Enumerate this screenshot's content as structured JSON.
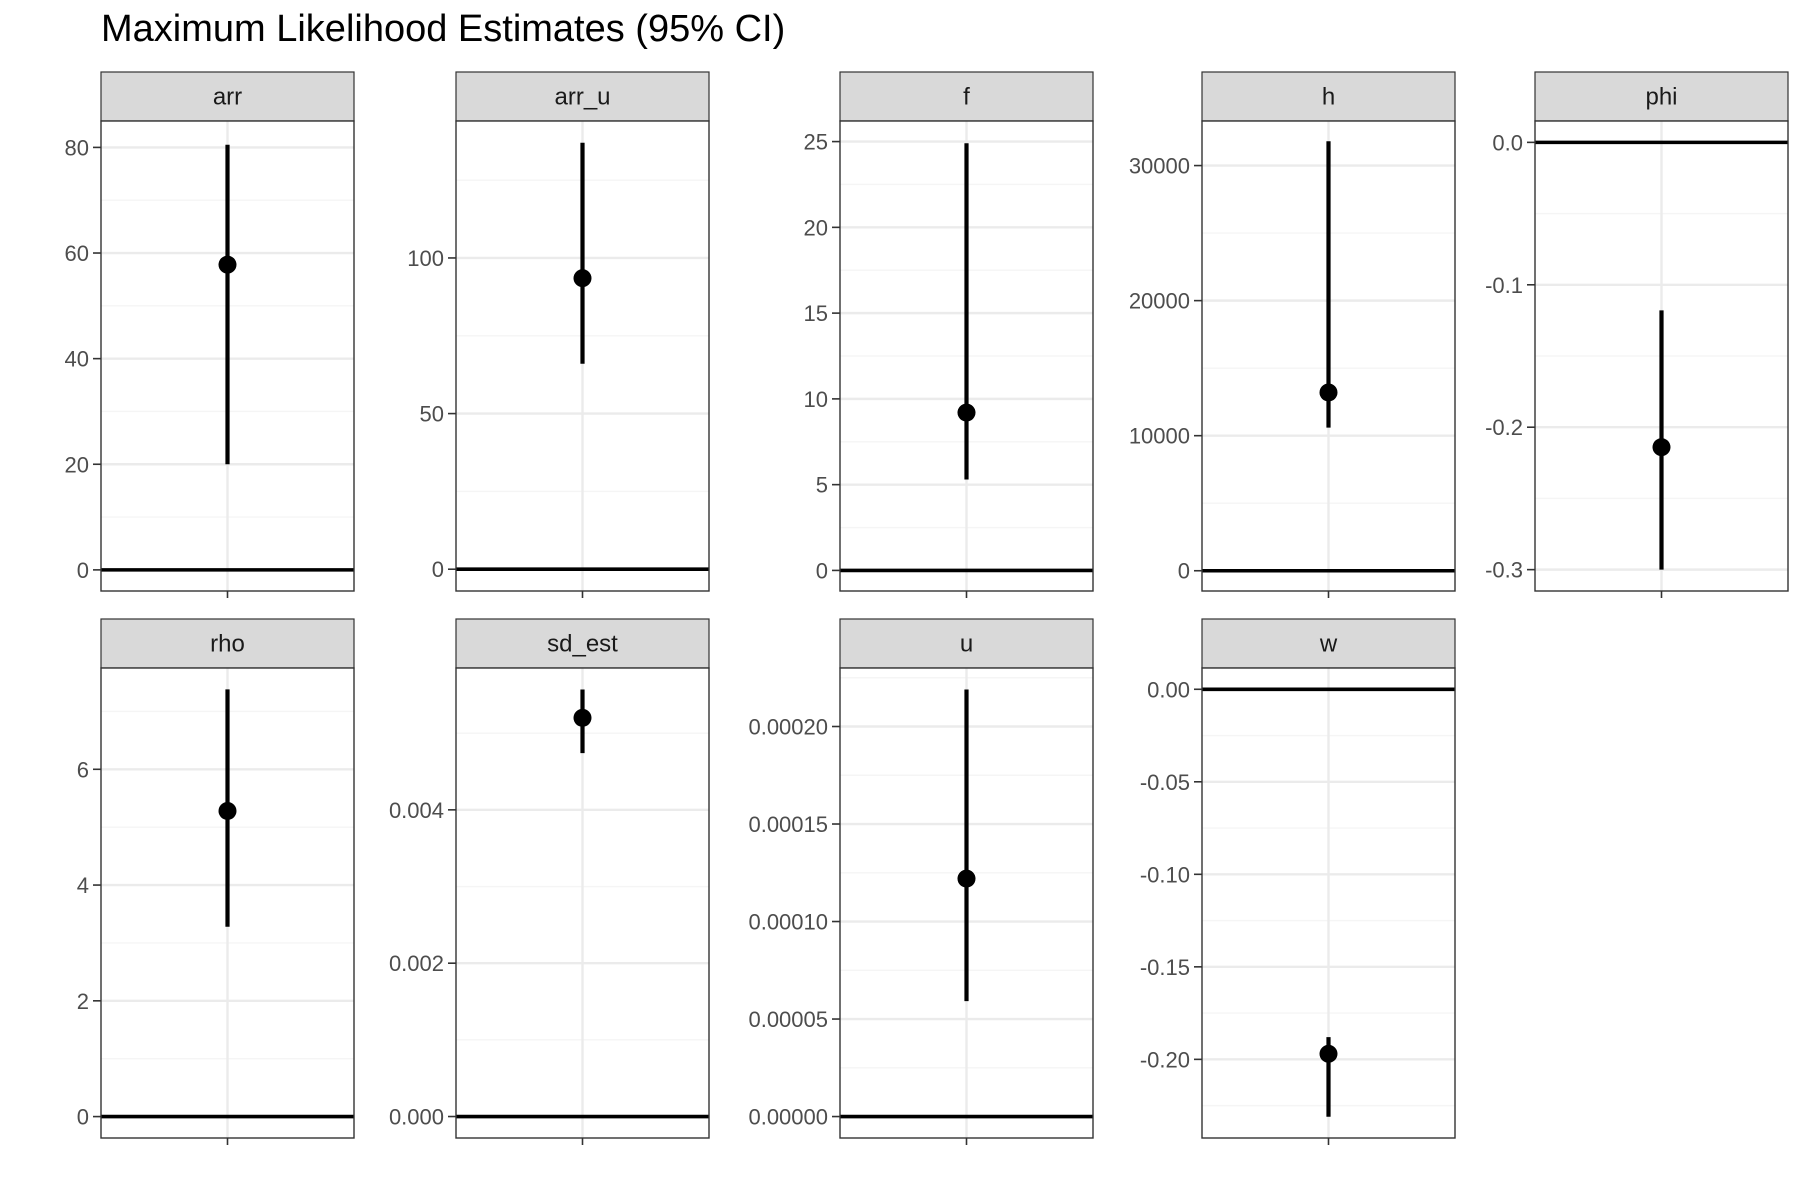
{
  "title": "Maximum Likelihood Estimates (95% CI)",
  "colors": {
    "strip_fill": "#d9d9d9",
    "grid_major": "#ebebeb",
    "grid_minor": "#f5f5f5",
    "panel_border": "#333333",
    "estimate": "#000000",
    "zero_line": "#000000"
  },
  "chart_data": {
    "type": "scatter",
    "layout": "facet_wrap",
    "ncol": 5,
    "grid": true,
    "title": "Maximum Likelihood Estimates (95% CI)",
    "xlabel": "",
    "ylabel": "",
    "reference_line_y": 0,
    "panels": [
      {
        "name": "arr",
        "estimate": 57.8,
        "lower": 20.0,
        "upper": 80.5,
        "ylim": [
          -4,
          85
        ],
        "ticks": [
          0,
          20,
          40,
          60,
          80
        ],
        "tick_labels": [
          "0",
          "20",
          "40",
          "60",
          "80"
        ]
      },
      {
        "name": "arr_u",
        "estimate": 93.5,
        "lower": 66.0,
        "upper": 137.0,
        "ylim": [
          -7,
          144
        ],
        "ticks": [
          0,
          50,
          100
        ],
        "tick_labels": [
          "0",
          "50",
          "100"
        ]
      },
      {
        "name": "f",
        "estimate": 9.2,
        "lower": 5.3,
        "upper": 24.9,
        "ylim": [
          -1.2,
          26.2
        ],
        "ticks": [
          0,
          5,
          10,
          15,
          20,
          25
        ],
        "tick_labels": [
          "0",
          "5",
          "10",
          "15",
          "20",
          "25"
        ]
      },
      {
        "name": "h",
        "estimate": 13200,
        "lower": 10600,
        "upper": 31800,
        "ylim": [
          -1500,
          33300
        ],
        "ticks": [
          0,
          10000,
          20000,
          30000
        ],
        "tick_labels": [
          "0",
          "10000",
          "20000",
          "30000"
        ]
      },
      {
        "name": "phi",
        "estimate": -0.214,
        "lower": -0.3,
        "upper": -0.118,
        "ylim": [
          -0.315,
          0.015
        ],
        "ticks": [
          -0.3,
          -0.2,
          -0.1,
          0.0
        ],
        "tick_labels": [
          "-0.3",
          "-0.2",
          "-0.1",
          "0.0"
        ]
      },
      {
        "name": "rho",
        "estimate": 5.28,
        "lower": 3.28,
        "upper": 7.38,
        "ylim": [
          -0.37,
          7.75
        ],
        "ticks": [
          0,
          2,
          4,
          6
        ],
        "tick_labels": [
          "0",
          "2",
          "4",
          "6"
        ]
      },
      {
        "name": "sd_est",
        "estimate": 0.0052,
        "lower": 0.00474,
        "upper": 0.00557,
        "ylim": [
          -0.00028,
          0.00585
        ],
        "ticks": [
          0,
          0.002,
          0.004
        ],
        "tick_labels": [
          "0.000",
          "0.002",
          "0.004"
        ]
      },
      {
        "name": "u",
        "estimate": 0.000122,
        "lower": 5.92e-05,
        "upper": 0.000219,
        "ylim": [
          -1.1e-05,
          0.00023
        ],
        "ticks": [
          0,
          5e-05,
          0.0001,
          0.00015,
          0.0002
        ],
        "tick_labels": [
          "0.00000",
          "0.00005",
          "0.00010",
          "0.00015",
          "0.00020"
        ]
      },
      {
        "name": "w",
        "estimate": -0.197,
        "lower": -0.231,
        "upper": -0.188,
        "ylim": [
          -0.2425,
          0.0115
        ],
        "ticks": [
          -0.2,
          -0.15,
          -0.1,
          -0.05,
          0.0
        ],
        "tick_labels": [
          "-0.20",
          "-0.15",
          "-0.10",
          "-0.05",
          "0.00"
        ]
      }
    ]
  }
}
